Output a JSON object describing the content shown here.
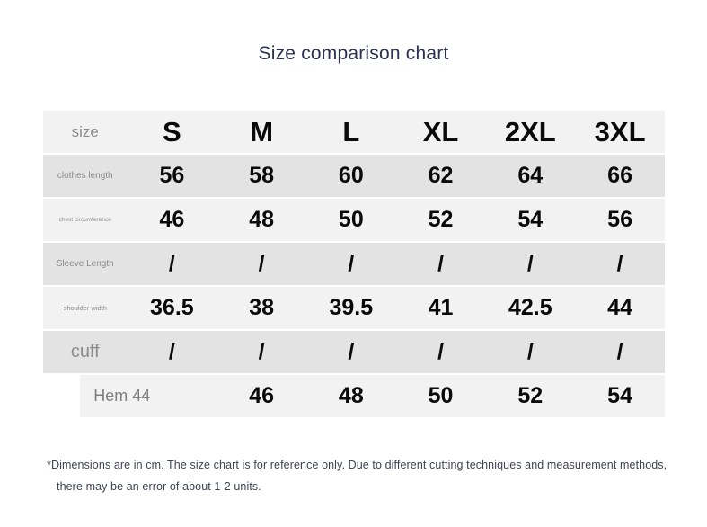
{
  "title": {
    "text": "Size comparison chart",
    "color": "#2b3150"
  },
  "table": {
    "header": {
      "label": "size",
      "columns": [
        "S",
        "M",
        "L",
        "XL",
        "2XL",
        "3XL"
      ]
    },
    "rows": [
      {
        "label": "clothes length",
        "values": [
          "56",
          "58",
          "60",
          "62",
          "64",
          "66"
        ]
      },
      {
        "label": "chest circumference",
        "values": [
          "46",
          "48",
          "50",
          "52",
          "54",
          "56"
        ]
      },
      {
        "label": "Sleeve Length",
        "values": [
          "/",
          "/",
          "/",
          "/",
          "/",
          "/"
        ]
      },
      {
        "label": "shoulder width",
        "values": [
          "36.5",
          "38",
          "39.5",
          "41",
          "42.5",
          "44"
        ]
      },
      {
        "label": "cuff",
        "values": [
          "/",
          "/",
          "/",
          "/",
          "/",
          "/"
        ]
      },
      {
        "label": "Hem 44",
        "values": [
          "",
          "46",
          "48",
          "50",
          "52",
          "54"
        ]
      }
    ],
    "colors": {
      "row_light": "#f2f2f2",
      "row_dark": "#e3e3e3",
      "label_text": "#8b8b8b",
      "value_text": "#0a0a0a"
    }
  },
  "footnote": {
    "line1": "*Dimensions are in cm. The size chart is for reference only. Due to different cutting techniques and measurement methods,",
    "line2": "there may be an error of about 1-2 units.",
    "color": "#3e4354"
  }
}
